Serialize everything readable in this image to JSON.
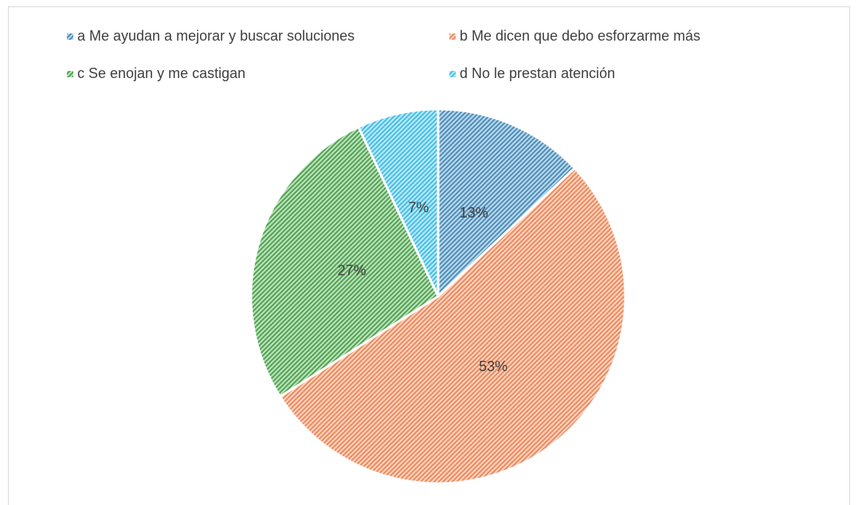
{
  "chart_data": {
    "type": "pie",
    "categories": [
      "a  Me ayudan a mejorar y buscar soluciones",
      "b  Me dicen que debo esforzarme más",
      "c Se enojan y me castigan",
      "d  No le prestan atención"
    ],
    "values": [
      13,
      53,
      27,
      7
    ],
    "value_labels": [
      "13%",
      "53%",
      "27%",
      "7%"
    ],
    "colors": [
      "#4a8fbd",
      "#f0895a",
      "#4fa64f",
      "#45bfe8"
    ],
    "legend": "top"
  }
}
